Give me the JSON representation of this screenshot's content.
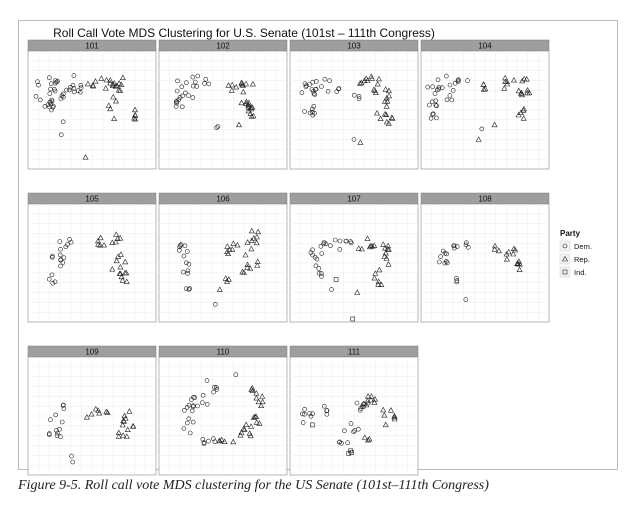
{
  "caption": "Figure 9-5. Roll call vote MDS clustering for the US Senate (101st–111th Congress)",
  "chart_data": {
    "type": "scatter",
    "title": "Roll Call Vote MDS Clustering for U.S. Senate (101st – 111th Congress)",
    "xlabel": "",
    "ylabel": "",
    "grid": true,
    "legend_position": "right",
    "legend": {
      "title": "Party",
      "entries": [
        {
          "label": "Dem.",
          "marker": "circle"
        },
        {
          "label": "Rep.",
          "marker": "triangle"
        },
        {
          "label": "Ind.",
          "marker": "square"
        }
      ]
    },
    "xlim": [
      -1,
      1
    ],
    "ylim": [
      -1,
      1
    ],
    "panels": [
      {
        "label": "101",
        "dem": [
          [
            -0.72,
            0.25,
            0.2,
            0.3
          ],
          [
            -0.55,
            0.35,
            0.16,
            0.2
          ],
          [
            -0.25,
            0.45,
            0.2,
            0.15
          ],
          [
            -0.66,
            0.05,
            0.08,
            0.12
          ],
          [
            -0.45,
            -0.2,
            0,
            0
          ],
          [
            -0.48,
            -0.42,
            0,
            0
          ]
        ],
        "rep": [
          [
            0.15,
            0.4,
            0.22,
            0.15
          ],
          [
            0.4,
            0.2,
            0.14,
            0.35
          ],
          [
            0.65,
            -0.08,
            0.07,
            0.1
          ],
          [
            -0.1,
            -0.8,
            0,
            0
          ]
        ],
        "ind": []
      },
      {
        "label": "102",
        "dem": [
          [
            -0.58,
            0.3,
            0.18,
            0.25
          ],
          [
            -0.35,
            0.48,
            0.15,
            0.1
          ],
          [
            -0.7,
            0.1,
            0.06,
            0.08
          ],
          [
            -0.08,
            -0.28,
            0,
            0
          ],
          [
            -0.1,
            -0.3,
            0,
            0
          ]
        ],
        "rep": [
          [
            0.22,
            0.42,
            0.18,
            0.12
          ],
          [
            0.38,
            0.18,
            0.1,
            0.3
          ],
          [
            0.42,
            -0.1,
            0.05,
            0.15
          ],
          [
            0.25,
            -0.25,
            0,
            0
          ]
        ],
        "ind": []
      },
      {
        "label": "103",
        "dem": [
          [
            -0.7,
            0.2,
            0.12,
            0.3
          ],
          [
            -0.5,
            0.4,
            0.18,
            0.15
          ],
          [
            -0.65,
            -0.05,
            0.05,
            0.05
          ],
          [
            -0.25,
            0.35,
            0.05,
            0.05
          ],
          [
            0.05,
            0.2,
            0.05,
            0.05
          ],
          [
            0.0,
            -0.5,
            0,
            0
          ]
        ],
        "rep": [
          [
            0.2,
            0.5,
            0.2,
            0.08
          ],
          [
            0.45,
            0.15,
            0.1,
            0.3
          ],
          [
            0.55,
            -0.12,
            0.05,
            0.12
          ],
          [
            0.1,
            -0.55,
            0,
            0
          ],
          [
            0.3,
            0.3,
            0.05,
            0.05
          ]
        ],
        "ind": []
      },
      {
        "label": "104",
        "dem": [
          [
            -0.8,
            0.25,
            0.1,
            0.2
          ],
          [
            -0.6,
            0.45,
            0.15,
            0.15
          ],
          [
            -0.35,
            0.48,
            0.12,
            0.06
          ],
          [
            -0.8,
            -0.05,
            0.05,
            0.1
          ],
          [
            -0.55,
            0.2,
            0.05,
            0.05
          ],
          [
            -0.05,
            -0.32,
            0,
            0
          ]
        ],
        "rep": [
          [
            0.35,
            0.45,
            0.12,
            0.1
          ],
          [
            0.6,
            0.3,
            0.1,
            0.3
          ],
          [
            0.55,
            -0.08,
            0.06,
            0.08
          ],
          [
            0.15,
            -0.25,
            0,
            0
          ],
          [
            -0.1,
            -0.5,
            0,
            0
          ],
          [
            0.05,
            0.4,
            0.1,
            0.05
          ]
        ],
        "ind": []
      },
      {
        "label": "105",
        "dem": [
          [
            -0.55,
            0.15,
            0.12,
            0.25
          ],
          [
            -0.4,
            0.35,
            0.08,
            0.08
          ],
          [
            -0.62,
            -0.25,
            0.05,
            0.1
          ]
        ],
        "rep": [
          [
            0.12,
            0.38,
            0.1,
            0.08
          ],
          [
            0.42,
            0.15,
            0.12,
            0.35
          ],
          [
            0.5,
            -0.25,
            0.06,
            0.12
          ]
        ],
        "ind": []
      },
      {
        "label": "106",
        "dem": [
          [
            -0.62,
            0.15,
            0.08,
            0.2
          ],
          [
            -0.58,
            -0.1,
            0.06,
            0.08
          ],
          [
            -0.55,
            -0.42,
            0.04,
            0.05
          ],
          [
            -0.12,
            -0.7,
            0,
            0
          ]
        ],
        "rep": [
          [
            0.12,
            0.25,
            0.12,
            0.12
          ],
          [
            0.45,
            0.25,
            0.1,
            0.3
          ],
          [
            0.35,
            -0.12,
            0.08,
            0.1
          ],
          [
            0.05,
            -0.3,
            0.05,
            0.05
          ],
          [
            -0.05,
            -0.45,
            0,
            0
          ]
        ],
        "ind": []
      },
      {
        "label": "107",
        "dem": [
          [
            -0.6,
            0.1,
            0.1,
            0.22
          ],
          [
            -0.35,
            0.32,
            0.15,
            0.1
          ],
          [
            -0.1,
            0.38,
            0.08,
            0.05
          ],
          [
            -0.55,
            -0.2,
            0.05,
            0.05
          ],
          [
            -0.35,
            -0.45,
            0,
            0
          ]
        ],
        "rep": [
          [
            0.2,
            0.32,
            0.15,
            0.1
          ],
          [
            0.45,
            0.12,
            0.1,
            0.25
          ],
          [
            0.38,
            -0.25,
            0.06,
            0.12
          ],
          [
            0.05,
            -0.5,
            0,
            0
          ]
        ],
        "ind": [
          [
            -0.28,
            -0.28,
            0,
            0
          ],
          [
            -0.02,
            -1.08,
            0,
            0
          ]
        ]
      },
      {
        "label": "108",
        "dem": [
          [
            -0.6,
            0.1,
            0.12,
            0.15
          ],
          [
            -0.45,
            0.28,
            0.08,
            0.06
          ],
          [
            -0.3,
            0.3,
            0.05,
            0.05
          ],
          [
            -0.4,
            -0.3,
            0.05,
            0.05
          ],
          [
            -0.3,
            -0.62,
            0,
            0
          ]
        ],
        "rep": [
          [
            0.2,
            0.25,
            0.05,
            0.05
          ],
          [
            0.45,
            0.12,
            0.12,
            0.18
          ],
          [
            0.5,
            -0.05,
            0.06,
            0.1
          ]
        ],
        "ind": []
      },
      {
        "label": "109",
        "dem": [
          [
            -0.55,
            -0.1,
            0.12,
            0.25
          ],
          [
            -0.4,
            0.15,
            0.06,
            0.06
          ],
          [
            -0.32,
            -0.68,
            0,
            0
          ],
          [
            -0.3,
            -0.78,
            0,
            0
          ]
        ],
        "rep": [
          [
            0.12,
            0.08,
            0.15,
            0.05
          ],
          [
            0.55,
            -0.12,
            0.1,
            0.25
          ],
          [
            0.45,
            -0.3,
            0.05,
            0.05
          ],
          [
            -0.08,
            -0.02,
            0,
            0
          ]
        ],
        "ind": []
      },
      {
        "label": "110",
        "dem": [
          [
            -0.55,
            0.0,
            0.1,
            0.3
          ],
          [
            -0.35,
            0.25,
            0.12,
            0.12
          ],
          [
            -0.2,
            -0.4,
            0.15,
            0.08
          ],
          [
            -0.05,
            0.45,
            0.1,
            0.05
          ],
          [
            -0.25,
            0.6,
            0,
            0
          ],
          [
            0.2,
            0.7,
            0,
            0
          ]
        ],
        "rep": [
          [
            0.5,
            0.1,
            0.12,
            0.25
          ],
          [
            0.3,
            -0.25,
            0.15,
            0.12
          ],
          [
            0.05,
            -0.45,
            0.12,
            0.05
          ],
          [
            0.45,
            0.45,
            0.08,
            0.08
          ]
        ],
        "ind": []
      },
      {
        "label": "111",
        "dem": [
          [
            -0.7,
            0.0,
            0.12,
            0.12
          ],
          [
            -0.45,
            0.1,
            0.08,
            0.08
          ],
          [
            -0.15,
            -0.45,
            0.08,
            0.05
          ],
          [
            0.1,
            0.15,
            0.15,
            0.1
          ],
          [
            0.0,
            -0.2,
            0.08,
            0.08
          ],
          [
            -0.15,
            -0.25,
            0,
            0
          ]
        ],
        "rep": [
          [
            0.25,
            0.25,
            0.12,
            0.15
          ],
          [
            0.55,
            0.0,
            0.1,
            0.15
          ],
          [
            0.2,
            -0.4,
            0.05,
            0.05
          ]
        ],
        "ind": [
          [
            -0.05,
            -0.6,
            0.04,
            0.04
          ],
          [
            -0.65,
            -0.15,
            0,
            0
          ]
        ]
      }
    ]
  }
}
